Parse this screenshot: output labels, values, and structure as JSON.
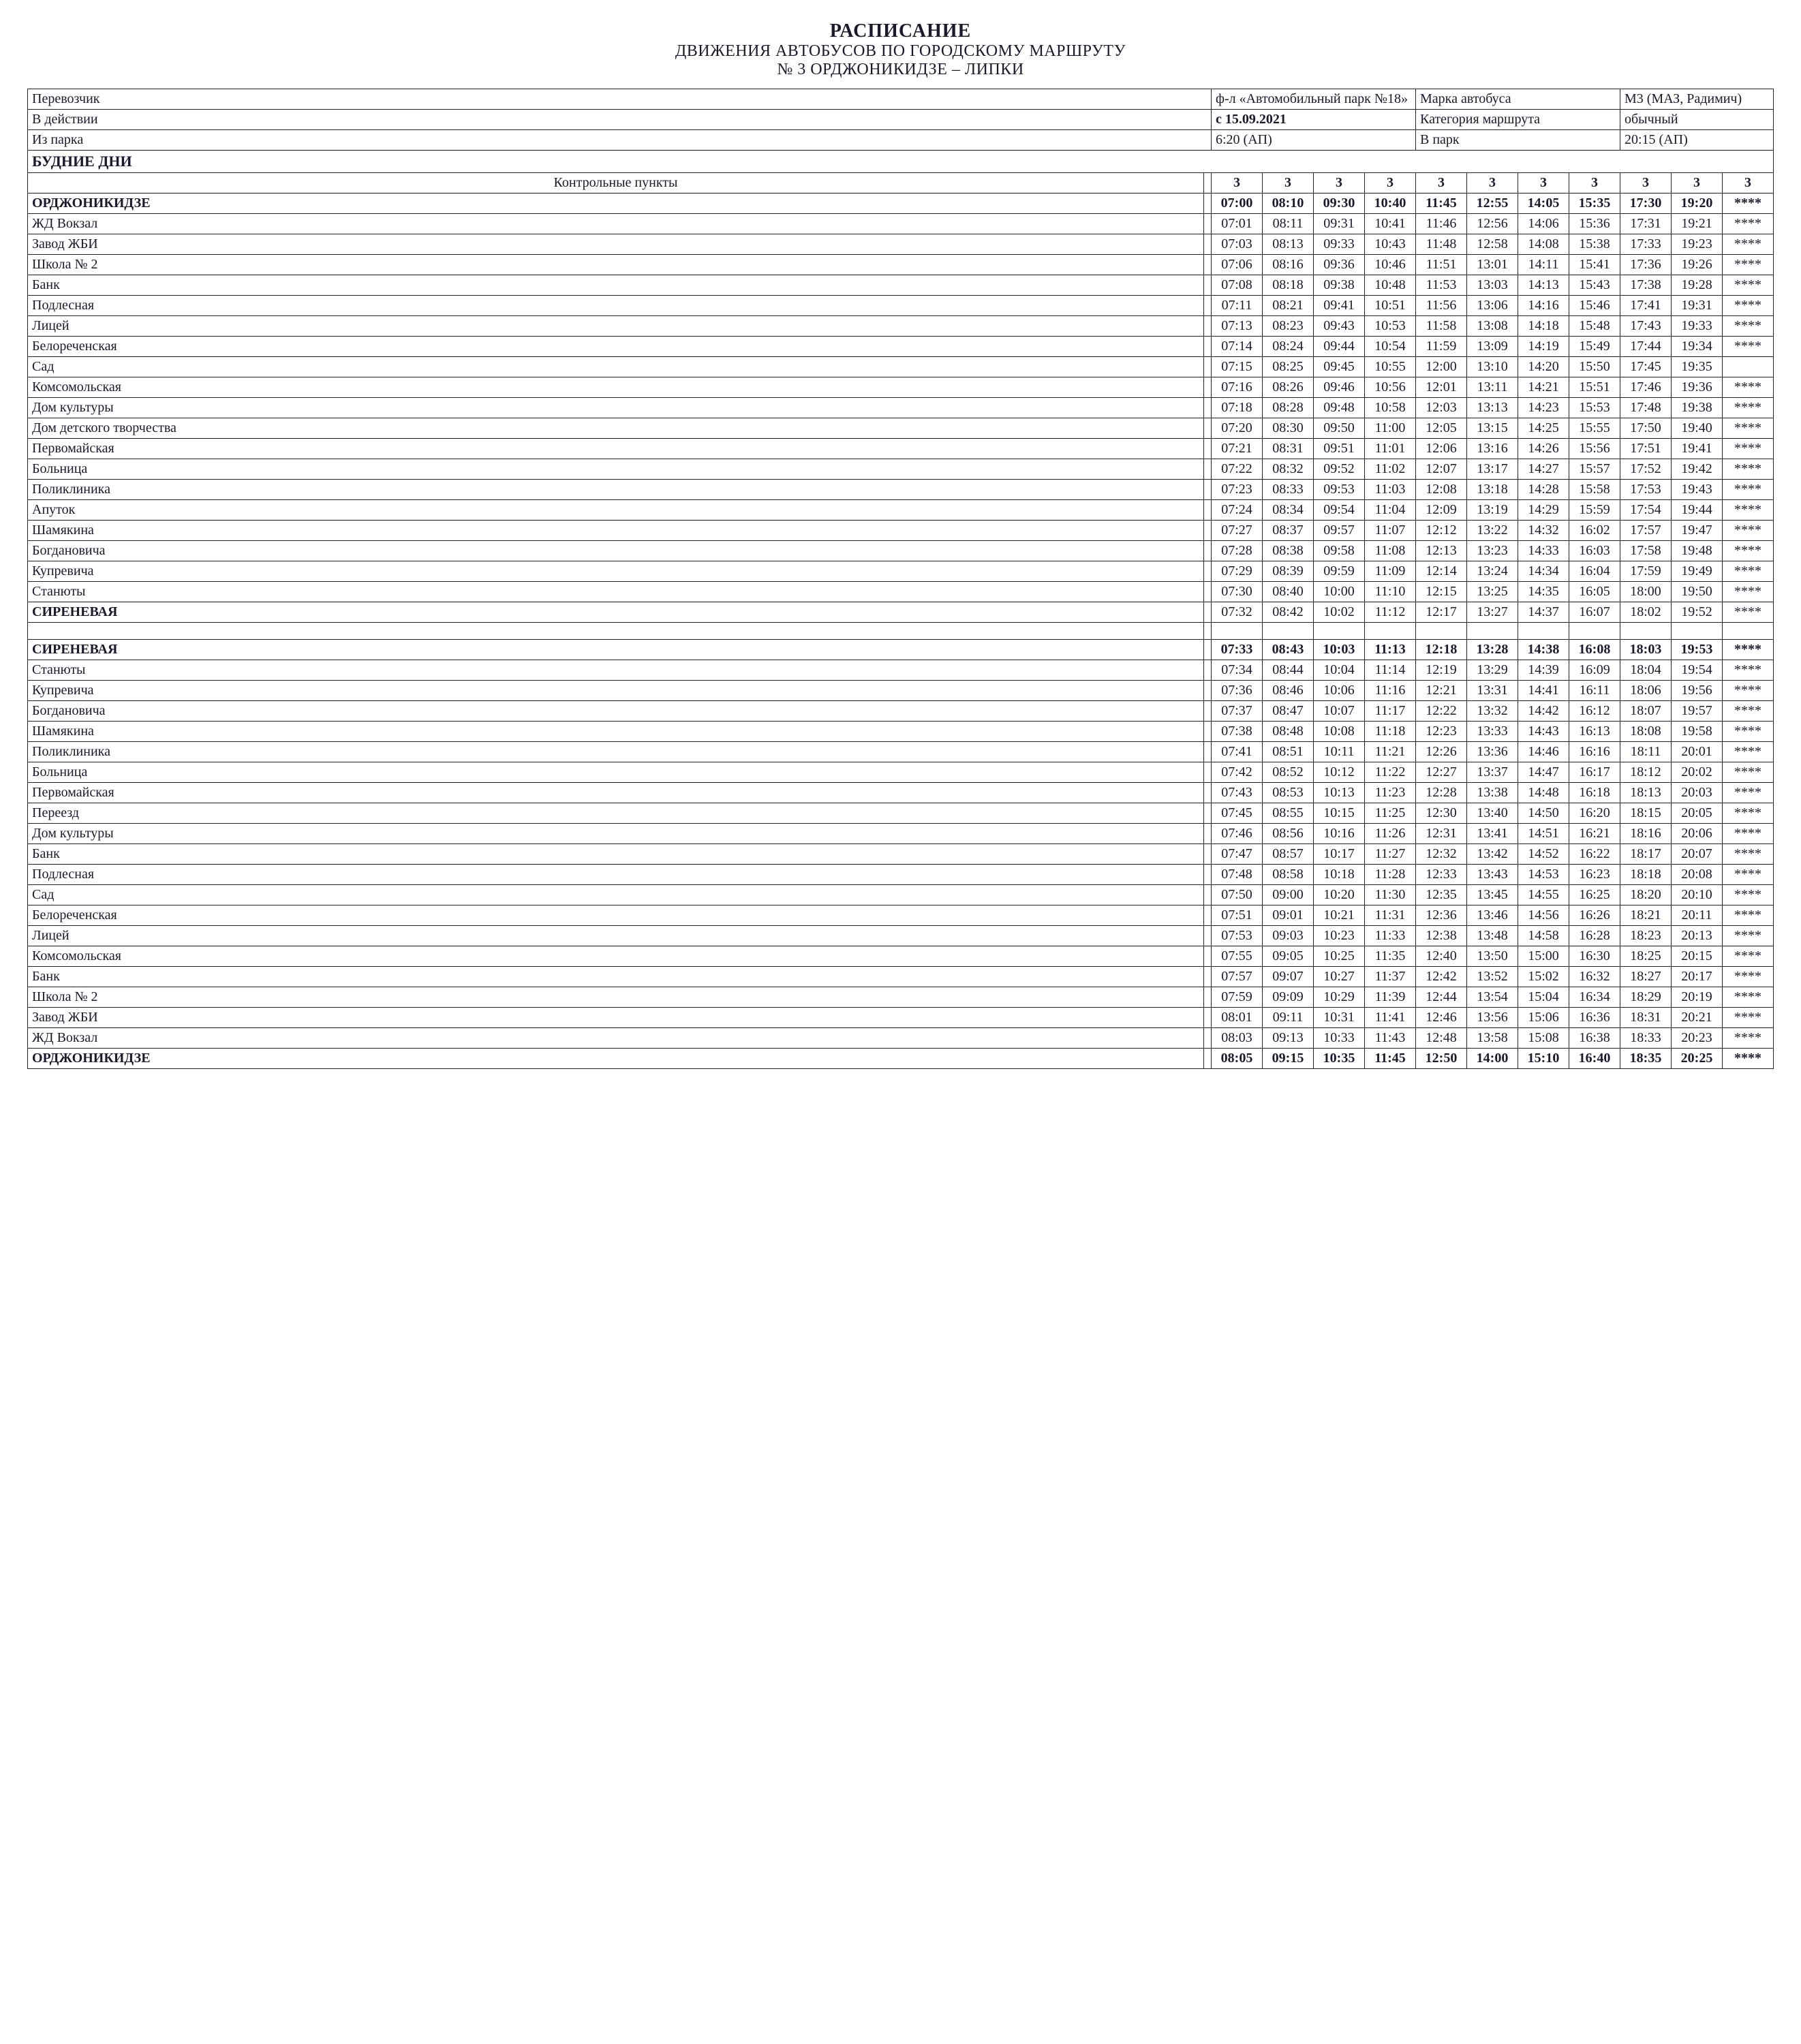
{
  "title": {
    "line1": "РАСПИСАНИЕ",
    "line2": "ДВИЖЕНИЯ АВТОБУСОВ ПО ГОРОДСКОМУ МАРШРУТУ",
    "line3": "№ 3 ОРДЖОНИКИДЗЕ – ЛИПКИ"
  },
  "header": {
    "carrier_label": "Перевозчик",
    "carrier_value": "ф-л «Автомобильный парк №18»",
    "bus_label": "Марка автобуса",
    "bus_value": "М3 (МАЗ, Радимич)",
    "inforce_label": "В действии",
    "inforce_value": "с 15.09.2021",
    "category_label": "Категория маршрута",
    "category_value": "обычный",
    "from_depot_label": "Из парка",
    "from_depot_value": "6:20 (АП)",
    "to_depot_label": "В парк",
    "to_depot_value": "20:15 (АП)"
  },
  "section_title": "БУДНИЕ ДНИ",
  "kp_label": "Контрольные пункты",
  "route_no": "3",
  "columns_count": 11,
  "outbound": {
    "stops": [
      "ОРДЖОНИКИДЗЕ",
      "ЖД Вокзал",
      "Завод ЖБИ",
      "Школа № 2",
      "Банк",
      "Подлесная",
      "Лицей",
      "Белореченская",
      "Сад",
      "Комсомольская",
      "Дом культуры",
      "Дом детского творчества",
      "Первомайская",
      "Больница",
      "Поликлиника",
      "Апуток",
      "Шамякина",
      "Богдановича",
      "Купревича",
      "Станюты",
      "СИРЕНЕВАЯ"
    ],
    "bold_stops": [
      0,
      20
    ],
    "times": [
      [
        "07:00",
        "08:10",
        "09:30",
        "10:40",
        "11:45",
        "12:55",
        "14:05",
        "15:35",
        "17:30",
        "19:20",
        "****"
      ],
      [
        "07:01",
        "08:11",
        "09:31",
        "10:41",
        "11:46",
        "12:56",
        "14:06",
        "15:36",
        "17:31",
        "19:21",
        "****"
      ],
      [
        "07:03",
        "08:13",
        "09:33",
        "10:43",
        "11:48",
        "12:58",
        "14:08",
        "15:38",
        "17:33",
        "19:23",
        "****"
      ],
      [
        "07:06",
        "08:16",
        "09:36",
        "10:46",
        "11:51",
        "13:01",
        "14:11",
        "15:41",
        "17:36",
        "19:26",
        "****"
      ],
      [
        "07:08",
        "08:18",
        "09:38",
        "10:48",
        "11:53",
        "13:03",
        "14:13",
        "15:43",
        "17:38",
        "19:28",
        "****"
      ],
      [
        "07:11",
        "08:21",
        "09:41",
        "10:51",
        "11:56",
        "13:06",
        "14:16",
        "15:46",
        "17:41",
        "19:31",
        "****"
      ],
      [
        "07:13",
        "08:23",
        "09:43",
        "10:53",
        "11:58",
        "13:08",
        "14:18",
        "15:48",
        "17:43",
        "19:33",
        "****"
      ],
      [
        "07:14",
        "08:24",
        "09:44",
        "10:54",
        "11:59",
        "13:09",
        "14:19",
        "15:49",
        "17:44",
        "19:34",
        "****"
      ],
      [
        "07:15",
        "08:25",
        "09:45",
        "10:55",
        "12:00",
        "13:10",
        "14:20",
        "15:50",
        "17:45",
        "19:35",
        ""
      ],
      [
        "07:16",
        "08:26",
        "09:46",
        "10:56",
        "12:01",
        "13:11",
        "14:21",
        "15:51",
        "17:46",
        "19:36",
        "****"
      ],
      [
        "07:18",
        "08:28",
        "09:48",
        "10:58",
        "12:03",
        "13:13",
        "14:23",
        "15:53",
        "17:48",
        "19:38",
        "****"
      ],
      [
        "07:20",
        "08:30",
        "09:50",
        "11:00",
        "12:05",
        "13:15",
        "14:25",
        "15:55",
        "17:50",
        "19:40",
        "****"
      ],
      [
        "07:21",
        "08:31",
        "09:51",
        "11:01",
        "12:06",
        "13:16",
        "14:26",
        "15:56",
        "17:51",
        "19:41",
        "****"
      ],
      [
        "07:22",
        "08:32",
        "09:52",
        "11:02",
        "12:07",
        "13:17",
        "14:27",
        "15:57",
        "17:52",
        "19:42",
        "****"
      ],
      [
        "07:23",
        "08:33",
        "09:53",
        "11:03",
        "12:08",
        "13:18",
        "14:28",
        "15:58",
        "17:53",
        "19:43",
        "****"
      ],
      [
        "07:24",
        "08:34",
        "09:54",
        "11:04",
        "12:09",
        "13:19",
        "14:29",
        "15:59",
        "17:54",
        "19:44",
        "****"
      ],
      [
        "07:27",
        "08:37",
        "09:57",
        "11:07",
        "12:12",
        "13:22",
        "14:32",
        "16:02",
        "17:57",
        "19:47",
        "****"
      ],
      [
        "07:28",
        "08:38",
        "09:58",
        "11:08",
        "12:13",
        "13:23",
        "14:33",
        "16:03",
        "17:58",
        "19:48",
        "****"
      ],
      [
        "07:29",
        "08:39",
        "09:59",
        "11:09",
        "12:14",
        "13:24",
        "14:34",
        "16:04",
        "17:59",
        "19:49",
        "****"
      ],
      [
        "07:30",
        "08:40",
        "10:00",
        "11:10",
        "12:15",
        "13:25",
        "14:35",
        "16:05",
        "18:00",
        "19:50",
        "****"
      ],
      [
        "07:32",
        "08:42",
        "10:02",
        "11:12",
        "12:17",
        "13:27",
        "14:37",
        "16:07",
        "18:02",
        "19:52",
        "****"
      ]
    ],
    "bold_rows": [
      0
    ]
  },
  "inbound": {
    "stops": [
      "СИРЕНЕВАЯ",
      "Станюты",
      "Купревича",
      "Богдановича",
      "Шамякина",
      "Поликлиника",
      "Больница",
      "Первомайская",
      "Переезд",
      "Дом культуры",
      "Банк",
      "Подлесная",
      "Сад",
      "Белореченская",
      "Лицей",
      "Комсомольская",
      "Банк",
      "Школа № 2",
      "Завод ЖБИ",
      "ЖД Вокзал",
      "ОРДЖОНИКИДЗЕ"
    ],
    "bold_stops": [
      0,
      20
    ],
    "times": [
      [
        "07:33",
        "08:43",
        "10:03",
        "11:13",
        "12:18",
        "13:28",
        "14:38",
        "16:08",
        "18:03",
        "19:53",
        "****"
      ],
      [
        "07:34",
        "08:44",
        "10:04",
        "11:14",
        "12:19",
        "13:29",
        "14:39",
        "16:09",
        "18:04",
        "19:54",
        "****"
      ],
      [
        "07:36",
        "08:46",
        "10:06",
        "11:16",
        "12:21",
        "13:31",
        "14:41",
        "16:11",
        "18:06",
        "19:56",
        "****"
      ],
      [
        "07:37",
        "08:47",
        "10:07",
        "11:17",
        "12:22",
        "13:32",
        "14:42",
        "16:12",
        "18:07",
        "19:57",
        "****"
      ],
      [
        "07:38",
        "08:48",
        "10:08",
        "11:18",
        "12:23",
        "13:33",
        "14:43",
        "16:13",
        "18:08",
        "19:58",
        "****"
      ],
      [
        "07:41",
        "08:51",
        "10:11",
        "11:21",
        "12:26",
        "13:36",
        "14:46",
        "16:16",
        "18:11",
        "20:01",
        "****"
      ],
      [
        "07:42",
        "08:52",
        "10:12",
        "11:22",
        "12:27",
        "13:37",
        "14:47",
        "16:17",
        "18:12",
        "20:02",
        "****"
      ],
      [
        "07:43",
        "08:53",
        "10:13",
        "11:23",
        "12:28",
        "13:38",
        "14:48",
        "16:18",
        "18:13",
        "20:03",
        "****"
      ],
      [
        "07:45",
        "08:55",
        "10:15",
        "11:25",
        "12:30",
        "13:40",
        "14:50",
        "16:20",
        "18:15",
        "20:05",
        "****"
      ],
      [
        "07:46",
        "08:56",
        "10:16",
        "11:26",
        "12:31",
        "13:41",
        "14:51",
        "16:21",
        "18:16",
        "20:06",
        "****"
      ],
      [
        "07:47",
        "08:57",
        "10:17",
        "11:27",
        "12:32",
        "13:42",
        "14:52",
        "16:22",
        "18:17",
        "20:07",
        "****"
      ],
      [
        "07:48",
        "08:58",
        "10:18",
        "11:28",
        "12:33",
        "13:43",
        "14:53",
        "16:23",
        "18:18",
        "20:08",
        "****"
      ],
      [
        "07:50",
        "09:00",
        "10:20",
        "11:30",
        "12:35",
        "13:45",
        "14:55",
        "16:25",
        "18:20",
        "20:10",
        "****"
      ],
      [
        "07:51",
        "09:01",
        "10:21",
        "11:31",
        "12:36",
        "13:46",
        "14:56",
        "16:26",
        "18:21",
        "20:11",
        "****"
      ],
      [
        "07:53",
        "09:03",
        "10:23",
        "11:33",
        "12:38",
        "13:48",
        "14:58",
        "16:28",
        "18:23",
        "20:13",
        "****"
      ],
      [
        "07:55",
        "09:05",
        "10:25",
        "11:35",
        "12:40",
        "13:50",
        "15:00",
        "16:30",
        "18:25",
        "20:15",
        "****"
      ],
      [
        "07:57",
        "09:07",
        "10:27",
        "11:37",
        "12:42",
        "13:52",
        "15:02",
        "16:32",
        "18:27",
        "20:17",
        "****"
      ],
      [
        "07:59",
        "09:09",
        "10:29",
        "11:39",
        "12:44",
        "13:54",
        "15:04",
        "16:34",
        "18:29",
        "20:19",
        "****"
      ],
      [
        "08:01",
        "09:11",
        "10:31",
        "11:41",
        "12:46",
        "13:56",
        "15:06",
        "16:36",
        "18:31",
        "20:21",
        "****"
      ],
      [
        "08:03",
        "09:13",
        "10:33",
        "11:43",
        "12:48",
        "13:58",
        "15:08",
        "16:38",
        "18:33",
        "20:23",
        "****"
      ],
      [
        "08:05",
        "09:15",
        "10:35",
        "11:45",
        "12:50",
        "14:00",
        "15:10",
        "16:40",
        "18:35",
        "20:25",
        "****"
      ]
    ],
    "bold_rows": [
      0,
      20
    ]
  }
}
